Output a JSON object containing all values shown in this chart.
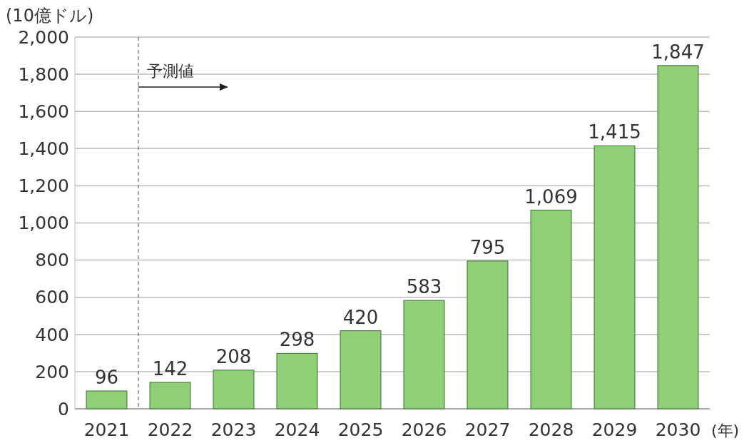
{
  "chart_data": {
    "type": "bar",
    "ylabel": "(10億ドル)",
    "xlabel": "(年)",
    "categories": [
      "2021",
      "2022",
      "2023",
      "2024",
      "2025",
      "2026",
      "2027",
      "2028",
      "2029",
      "2030"
    ],
    "values": [
      96,
      142,
      208,
      298,
      420,
      583,
      795,
      1069,
      1415,
      1847
    ],
    "color": "#8ecf78",
    "value_labels": [
      "96",
      "142",
      "208",
      "298",
      "420",
      "583",
      "795",
      "1,069",
      "1,415",
      "1,847"
    ],
    "ylim": [
      0,
      2000
    ],
    "yticks": [
      0,
      200,
      400,
      600,
      800,
      {
        "value": 1000,
        "label": "1,000"
      },
      {
        "value": 1200,
        "label": "1,200"
      },
      {
        "value": 1400,
        "label": "1,400"
      },
      {
        "value": 1600,
        "label": "1,600"
      },
      {
        "value": 1800,
        "label": "1,800"
      },
      {
        "value": 2000,
        "label": "2,000"
      }
    ],
    "grid": "y",
    "ref_lines": [
      {
        "axis": "x",
        "value": "2022",
        "label": "予測値",
        "line_style": "dashed"
      }
    ]
  }
}
